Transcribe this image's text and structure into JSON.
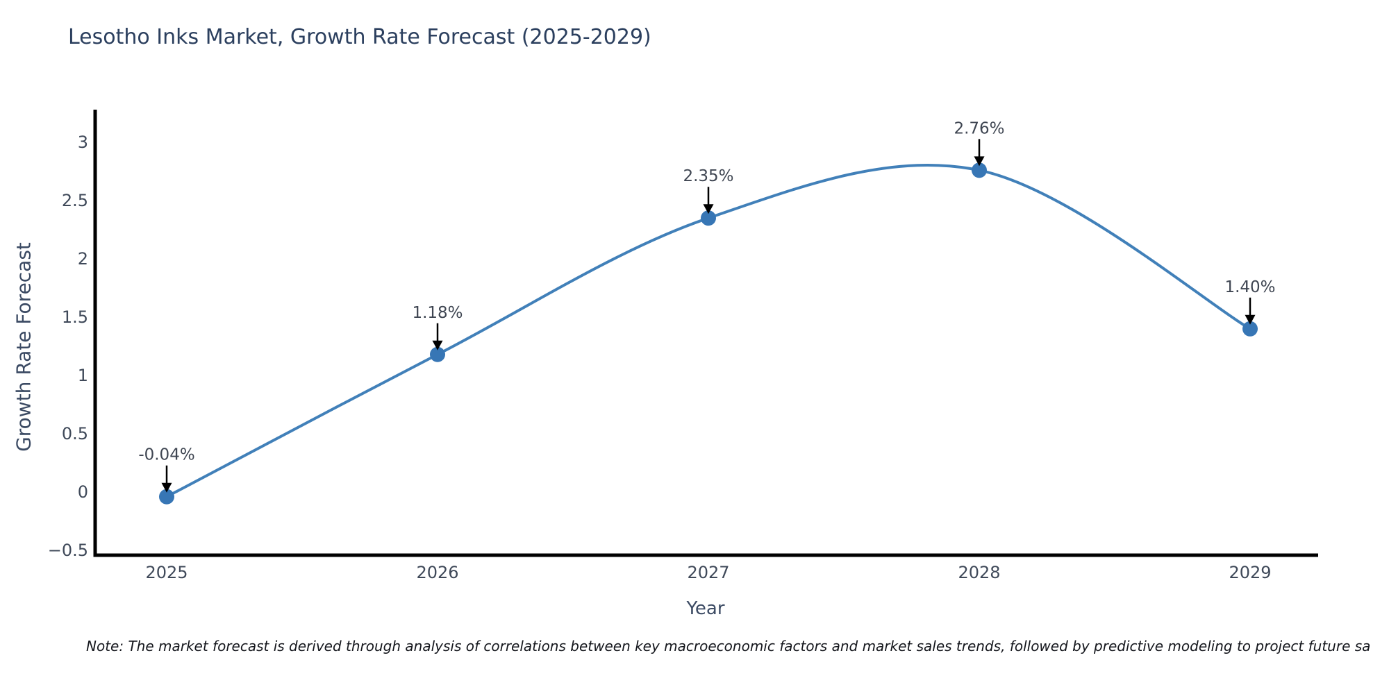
{
  "chart_data": {
    "type": "line",
    "title": "Lesotho Inks Market, Growth Rate Forecast (2025-2029)",
    "xlabel": "Year",
    "ylabel": "Growth Rate Forecast",
    "x": [
      2025,
      2026,
      2027,
      2028,
      2029
    ],
    "x_tick_labels": [
      "2025",
      "2026",
      "2027",
      "2028",
      "2029"
    ],
    "series": [
      {
        "name": "Growth Rate Forecast",
        "values": [
          -0.04,
          1.18,
          2.35,
          2.76,
          1.4
        ],
        "point_labels": [
          "-0.04%",
          "1.18%",
          "2.35%",
          "2.76%",
          "1.40%"
        ]
      }
    ],
    "y_ticks": [
      3,
      2.5,
      2,
      1.5,
      1,
      0.5,
      0,
      -0.5
    ],
    "y_tick_labels": [
      "3",
      "2.5",
      "2",
      "1.5",
      "1",
      "0.5",
      "0",
      "−0.5"
    ],
    "ylim": [
      -0.56,
      3.28
    ],
    "grid": false,
    "legend": false,
    "line_shape": "spline",
    "marker": "circle",
    "annotation_arrows": true,
    "colors": {
      "line": "#4180b9",
      "marker": "#3776b5",
      "arrow": "#000000",
      "axis": "#000000",
      "title": "#2b3f5e",
      "axis_title": "#3b4a63",
      "tick_label": "#3f4959",
      "annotation": "#3f4652"
    },
    "note": "Note: The market forecast is derived through analysis of correlations between key macroeconomic factors and market sales trends, followed by predictive modeling to project future sa"
  }
}
